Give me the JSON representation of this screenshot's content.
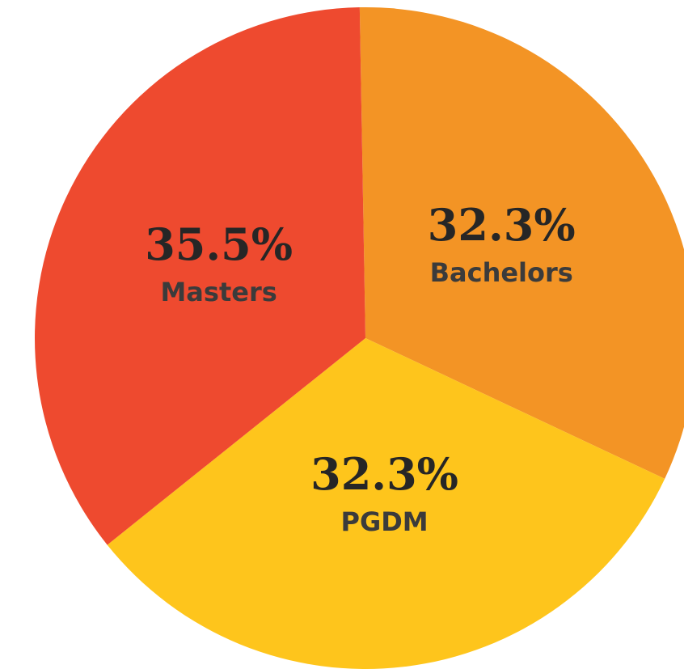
{
  "chart_data": {
    "type": "pie",
    "categories": [
      "Bachelors",
      "PGDM",
      "Masters"
    ],
    "values": [
      32.3,
      32.3,
      35.5
    ],
    "value_labels": [
      "32.3%",
      "32.3%",
      "35.5%"
    ],
    "colors": [
      "#f39425",
      "#fec51c",
      "#ee4a2f"
    ]
  }
}
